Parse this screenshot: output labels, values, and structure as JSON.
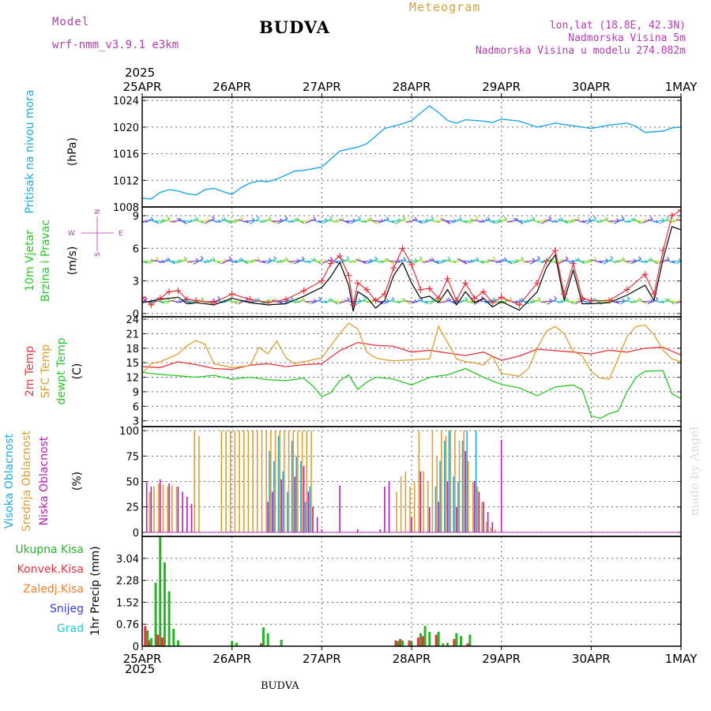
{
  "header": {
    "model_label": "Model",
    "model_name": "wrf-nmm_v3.9.1  e3km",
    "title": "Meteogram",
    "station": "BUDVA",
    "lonlat": "lon,lat (18.8E, 42.3N)",
    "altitude": "Nadmorska Visina 5m",
    "model_altitude": "Nadmorska Visina u modelu 274.082m",
    "year": "2025",
    "footer_station": "BUDVA",
    "watermark": "made by Angel"
  },
  "colors": {
    "pressure": "#1ea8e6",
    "wind_speed": "#000000",
    "wind_gust": "#e8323c",
    "temp2m": "#e8323c",
    "sfc_temp": "#dca032",
    "dewpt": "#28c828",
    "cloud_high": "#1ea8e6",
    "cloud_mid": "#dca032",
    "cloud_low": "#b41eb4",
    "precip_total": "#28b428",
    "precip_conv": "#e8323c",
    "precip_frozen": "#f08228",
    "precip_snow": "#3c3cdc",
    "precip_graupel": "#28c8c8"
  },
  "chart_data": [
    {
      "panel": "pressure",
      "type": "line",
      "ylabel_lines": [
        "Pritisak na nivou mora"
      ],
      "unit": "(hPa)",
      "ylim": [
        1008,
        1024.5
      ],
      "yticks": [
        1008,
        1012,
        1016,
        1020,
        1024
      ],
      "x_days": [
        0,
        0.1,
        0.2,
        0.3,
        0.4,
        0.5,
        0.6,
        0.7,
        0.8,
        0.9,
        1.0,
        1.1,
        1.2,
        1.3,
        1.4,
        1.5,
        1.6,
        1.7,
        1.8,
        2.0,
        2.2,
        2.4,
        2.5,
        2.7,
        2.9,
        3.0,
        3.2,
        3.3,
        3.4,
        3.5,
        3.6,
        3.8,
        3.9,
        4.0,
        4.2,
        4.4,
        4.6,
        4.8,
        5.0,
        5.2,
        5.4,
        5.5,
        5.6,
        5.8,
        5.9,
        6.0
      ],
      "values": [
        1009.3,
        1009.2,
        1010.2,
        1010.6,
        1010.4,
        1010.0,
        1009.8,
        1010.6,
        1010.8,
        1010.3,
        1009.9,
        1010.9,
        1011.6,
        1011.9,
        1011.8,
        1012.2,
        1012.8,
        1013.4,
        1013.5,
        1014.0,
        1016.4,
        1017.0,
        1017.5,
        1019.8,
        1020.5,
        1021.0,
        1023.2,
        1022.2,
        1021.0,
        1020.6,
        1021.1,
        1020.9,
        1020.7,
        1021.2,
        1020.9,
        1020.0,
        1020.6,
        1020.2,
        1019.8,
        1020.3,
        1020.6,
        1020.1,
        1019.2,
        1019.4,
        1019.9,
        1020.0
      ]
    },
    {
      "panel": "wind",
      "type": "line",
      "ylabel_lines": [
        "10m Vjetar",
        "Brzina i Pravac"
      ],
      "unit": "(m/s)",
      "compass": [
        "W",
        "E",
        "N",
        "S"
      ],
      "ylim": [
        -0.3,
        9.8
      ],
      "yticks": [
        0,
        3,
        6,
        9
      ],
      "barb_levels": [
        1.1,
        4.8,
        8.5
      ],
      "series": [
        {
          "name": "10m wind speed",
          "x_days": [
            0,
            0.2,
            0.4,
            0.5,
            0.6,
            0.8,
            1.0,
            1.2,
            1.4,
            1.6,
            1.8,
            2.0,
            2.1,
            2.2,
            2.3,
            2.35,
            2.4,
            2.5,
            2.6,
            2.7,
            2.8,
            2.9,
            3.0,
            3.1,
            3.2,
            3.3,
            3.4,
            3.5,
            3.6,
            3.7,
            3.8,
            3.9,
            4.0,
            4.2,
            4.4,
            4.5,
            4.6,
            4.7,
            4.8,
            4.9,
            5.0,
            5.2,
            5.4,
            5.6,
            5.7,
            5.8,
            5.9,
            6.0
          ],
          "values": [
            1.0,
            1.3,
            1.5,
            0.9,
            1.0,
            0.8,
            1.4,
            1.0,
            0.8,
            0.9,
            1.6,
            2.4,
            3.4,
            4.7,
            2.6,
            0.2,
            2.0,
            1.5,
            0.5,
            1.2,
            3.5,
            4.7,
            2.8,
            1.4,
            1.6,
            1.0,
            2.2,
            0.8,
            2.0,
            1.0,
            1.4,
            0.6,
            1.1,
            0.3,
            2.0,
            4.2,
            5.4,
            1.2,
            4.0,
            0.9,
            0.9,
            1.0,
            1.7,
            2.6,
            1.2,
            5.0,
            8.0,
            7.7
          ]
        },
        {
          "name": "10m wind gust",
          "x_days": [
            0,
            0.1,
            0.2,
            0.3,
            0.4,
            0.5,
            0.6,
            0.8,
            1.0,
            1.2,
            1.4,
            1.6,
            1.8,
            2.0,
            2.1,
            2.2,
            2.3,
            2.35,
            2.4,
            2.5,
            2.6,
            2.7,
            2.8,
            2.9,
            3.0,
            3.1,
            3.2,
            3.3,
            3.4,
            3.5,
            3.6,
            3.7,
            3.8,
            3.9,
            4.0,
            4.2,
            4.4,
            4.5,
            4.6,
            4.7,
            4.8,
            4.9,
            5.0,
            5.2,
            5.4,
            5.6,
            5.7,
            5.8,
            5.9,
            6.0
          ],
          "values": [
            1.5,
            0.8,
            1.4,
            2.0,
            2.1,
            1.3,
            1.2,
            1.0,
            1.8,
            1.3,
            1.0,
            1.3,
            2.1,
            3.0,
            4.6,
            5.3,
            3.5,
            0.8,
            2.8,
            2.2,
            1.2,
            1.8,
            4.2,
            6.0,
            4.5,
            2.2,
            2.3,
            1.4,
            3.2,
            1.2,
            2.8,
            1.4,
            2.0,
            1.0,
            1.5,
            0.8,
            2.8,
            4.8,
            5.8,
            1.8,
            4.6,
            1.4,
            1.2,
            1.2,
            2.2,
            3.6,
            1.8,
            5.8,
            9.0,
            9.5
          ]
        }
      ]
    },
    {
      "panel": "temperature",
      "type": "line",
      "ylabel_lines": [
        "2m Temp",
        "SFC Temp",
        "dewpt Temp"
      ],
      "unit": "(C)",
      "ylim": [
        1.8,
        24.5
      ],
      "yticks": [
        3,
        6,
        9,
        12,
        15,
        18,
        21,
        24
      ],
      "series": [
        {
          "name": "2m Temp",
          "x_days": [
            0,
            0.2,
            0.4,
            0.6,
            0.8,
            1.0,
            1.2,
            1.4,
            1.6,
            1.8,
            2.0,
            2.2,
            2.4,
            2.6,
            2.8,
            3.0,
            3.2,
            3.4,
            3.6,
            3.8,
            4.0,
            4.2,
            4.4,
            4.6,
            4.8,
            5.0,
            5.2,
            5.4,
            5.6,
            5.8,
            6.0
          ],
          "values": [
            14.2,
            14.0,
            15.2,
            14.6,
            13.8,
            13.6,
            14.5,
            14.8,
            14.2,
            14.6,
            14.8,
            17.5,
            19.2,
            18.6,
            18.4,
            17.2,
            17.6,
            17.0,
            16.5,
            17.2,
            15.5,
            16.4,
            17.8,
            17.5,
            17.2,
            16.8,
            17.6,
            17.2,
            18.0,
            18.2,
            16.6
          ]
        },
        {
          "name": "SFC Temp",
          "x_days": [
            0,
            0.1,
            0.2,
            0.3,
            0.4,
            0.5,
            0.6,
            0.7,
            0.8,
            1.0,
            1.2,
            1.3,
            1.4,
            1.5,
            1.6,
            1.7,
            1.8,
            2.0,
            2.2,
            2.3,
            2.4,
            2.5,
            2.6,
            2.7,
            2.8,
            3.0,
            3.2,
            3.3,
            3.4,
            3.5,
            3.6,
            3.7,
            3.8,
            3.9,
            4.0,
            4.2,
            4.3,
            4.4,
            4.5,
            4.6,
            4.7,
            4.8,
            4.9,
            5.0,
            5.1,
            5.2,
            5.3,
            5.4,
            5.5,
            5.6,
            5.7,
            5.8,
            5.9,
            6.0
          ],
          "values": [
            12.8,
            14.8,
            15.2,
            16.0,
            16.8,
            18.5,
            19.6,
            18.8,
            14.8,
            14.0,
            14.4,
            18.2,
            16.8,
            19.5,
            16.0,
            14.8,
            15.2,
            16.0,
            21.0,
            23.2,
            22.0,
            17.2,
            16.0,
            15.6,
            15.4,
            15.6,
            15.8,
            22.5,
            19.2,
            15.8,
            15.2,
            15.0,
            14.5,
            16.4,
            12.8,
            12.2,
            13.8,
            18.0,
            21.5,
            22.5,
            21.0,
            17.4,
            16.4,
            13.2,
            11.8,
            11.6,
            15.8,
            20.4,
            22.5,
            22.8,
            20.8,
            17.6,
            15.8,
            15.2
          ]
        },
        {
          "name": "dewpt Temp",
          "x_days": [
            0,
            0.2,
            0.4,
            0.6,
            0.8,
            1.0,
            1.2,
            1.4,
            1.6,
            1.8,
            1.9,
            2.0,
            2.1,
            2.2,
            2.3,
            2.4,
            2.5,
            2.6,
            2.8,
            3.0,
            3.2,
            3.4,
            3.6,
            3.8,
            4.0,
            4.2,
            4.4,
            4.6,
            4.8,
            4.9,
            5.0,
            5.1,
            5.2,
            5.3,
            5.4,
            5.5,
            5.6,
            5.8,
            5.9,
            6.0
          ],
          "values": [
            13.0,
            12.6,
            12.3,
            12.0,
            12.4,
            11.6,
            12.0,
            11.5,
            11.3,
            11.8,
            10.2,
            8.0,
            8.8,
            11.3,
            12.5,
            9.5,
            11.0,
            12.0,
            11.6,
            10.4,
            12.0,
            12.5,
            13.8,
            12.0,
            10.5,
            9.8,
            8.2,
            10.0,
            10.4,
            9.4,
            4.0,
            3.5,
            4.5,
            5.0,
            9.0,
            12.0,
            13.2,
            13.4,
            8.6,
            7.6
          ]
        }
      ]
    },
    {
      "panel": "clouds",
      "type": "bar",
      "ylabel_lines": [
        "Visoka Oblacnost",
        "Srednja Oblacnost",
        "Niska Oblacnost"
      ],
      "unit": "(%)",
      "ylim": [
        -4,
        104
      ],
      "yticks": [
        0,
        25,
        50,
        75,
        100
      ],
      "series": [
        {
          "name": "Visoka Oblacnost",
          "x_days": [
            1.4,
            1.45,
            1.5,
            1.55,
            1.6,
            1.65,
            1.7,
            1.75,
            1.8,
            1.85,
            3.25,
            3.3,
            3.35,
            3.4,
            3.45,
            3.5,
            3.55,
            3.6,
            3.7
          ],
          "values": [
            80,
            70,
            95,
            60,
            40,
            90,
            75,
            70,
            30,
            45,
            45,
            70,
            90,
            100,
            55,
            50,
            90,
            100,
            100
          ]
        },
        {
          "name": "Srednja Oblacnost",
          "x_days": [
            0.1,
            0.15,
            0.2,
            0.25,
            0.3,
            0.35,
            0.4,
            0.6,
            0.65,
            0.9,
            0.95,
            1.0,
            1.05,
            1.1,
            1.15,
            1.2,
            1.25,
            1.3,
            1.35,
            1.4,
            1.45,
            1.5,
            1.55,
            1.6,
            1.65,
            1.7,
            1.75,
            1.8,
            1.85,
            1.9,
            2.85,
            2.9,
            2.95,
            3.0,
            3.05,
            3.1,
            3.15,
            3.2,
            3.25,
            3.3,
            3.35,
            3.4,
            3.45,
            3.5,
            3.55,
            3.6,
            3.65,
            3.7,
            3.75,
            3.8,
            3.85,
            3.9,
            3.95
          ],
          "values": [
            40,
            45,
            48,
            47,
            45,
            46,
            45,
            100,
            95,
            100,
            100,
            100,
            100,
            100,
            100,
            100,
            100,
            100,
            100,
            100,
            100,
            100,
            100,
            100,
            100,
            100,
            100,
            100,
            100,
            100,
            40,
            55,
            60,
            45,
            50,
            100,
            60,
            50,
            100,
            75,
            100,
            95,
            100,
            100,
            90,
            100,
            70,
            50,
            45,
            30,
            10,
            5,
            3
          ]
        },
        {
          "name": "Niska Oblacnost",
          "x_days": [
            0.05,
            0.1,
            0.2,
            0.3,
            0.4,
            0.45,
            0.5,
            0.55,
            1.4,
            1.45,
            1.55,
            1.7,
            1.8,
            1.85,
            1.9,
            1.95,
            2.0,
            2.2,
            2.4,
            2.65,
            2.7,
            2.75,
            3.0,
            3.1,
            3.2,
            3.3,
            3.4,
            3.5,
            3.6,
            3.7,
            3.75,
            3.8,
            3.85,
            3.9,
            4.0
          ],
          "values": [
            50,
            45,
            52,
            48,
            45,
            40,
            35,
            28,
            30,
            40,
            52,
            55,
            65,
            40,
            25,
            15,
            3,
            46,
            3,
            3,
            45,
            50,
            15,
            60,
            25,
            30,
            50,
            25,
            80,
            50,
            40,
            30,
            20,
            10,
            91
          ]
        }
      ]
    },
    {
      "panel": "precip",
      "type": "bar",
      "ylabel_lines": [
        "1hr Precip (mm)"
      ],
      "legend": [
        "Ukupna Kisa",
        "Konvek.Kisa",
        "Zaledj.Kisa",
        "Snijeg",
        "Grad"
      ],
      "ylim": [
        0,
        3.8
      ],
      "yticks": [
        0,
        0.76,
        1.52,
        2.28,
        3.04
      ],
      "ytick_labels": [
        "0",
        "0.76",
        "1.52",
        "2.28",
        "3.04"
      ],
      "series": [
        {
          "name": "Ukupna Kisa",
          "x_days": [
            0.06,
            0.1,
            0.15,
            0.2,
            0.25,
            0.3,
            0.35,
            0.4,
            1.0,
            1.05,
            1.35,
            1.4,
            1.55,
            2.85,
            2.9,
            3.0,
            3.1,
            3.15,
            3.2,
            3.3,
            3.35,
            3.4,
            3.5,
            3.55,
            3.65
          ],
          "values": [
            0.55,
            0.28,
            2.2,
            3.8,
            2.9,
            1.9,
            0.6,
            0.2,
            0.18,
            0.12,
            0.65,
            0.45,
            0.22,
            0.18,
            0.2,
            0.18,
            0.45,
            0.7,
            0.5,
            0.5,
            0.1,
            0.12,
            0.45,
            0.35,
            0.4
          ]
        },
        {
          "name": "Konvek.Kisa",
          "x_days": [
            0.06,
            0.1,
            0.2,
            0.25,
            1.35,
            2.85,
            2.9,
            3.0,
            3.1,
            3.15,
            3.3,
            3.5,
            3.65
          ],
          "values": [
            0.7,
            0.2,
            0.4,
            0.3,
            0.1,
            0.2,
            0.25,
            0.2,
            0.3,
            0.35,
            0.4,
            0.25,
            0.1
          ]
        }
      ]
    }
  ],
  "x_axis": {
    "day_labels": [
      "25APR",
      "26APR",
      "27APR",
      "28APR",
      "29APR",
      "30APR",
      "1MAY"
    ]
  }
}
